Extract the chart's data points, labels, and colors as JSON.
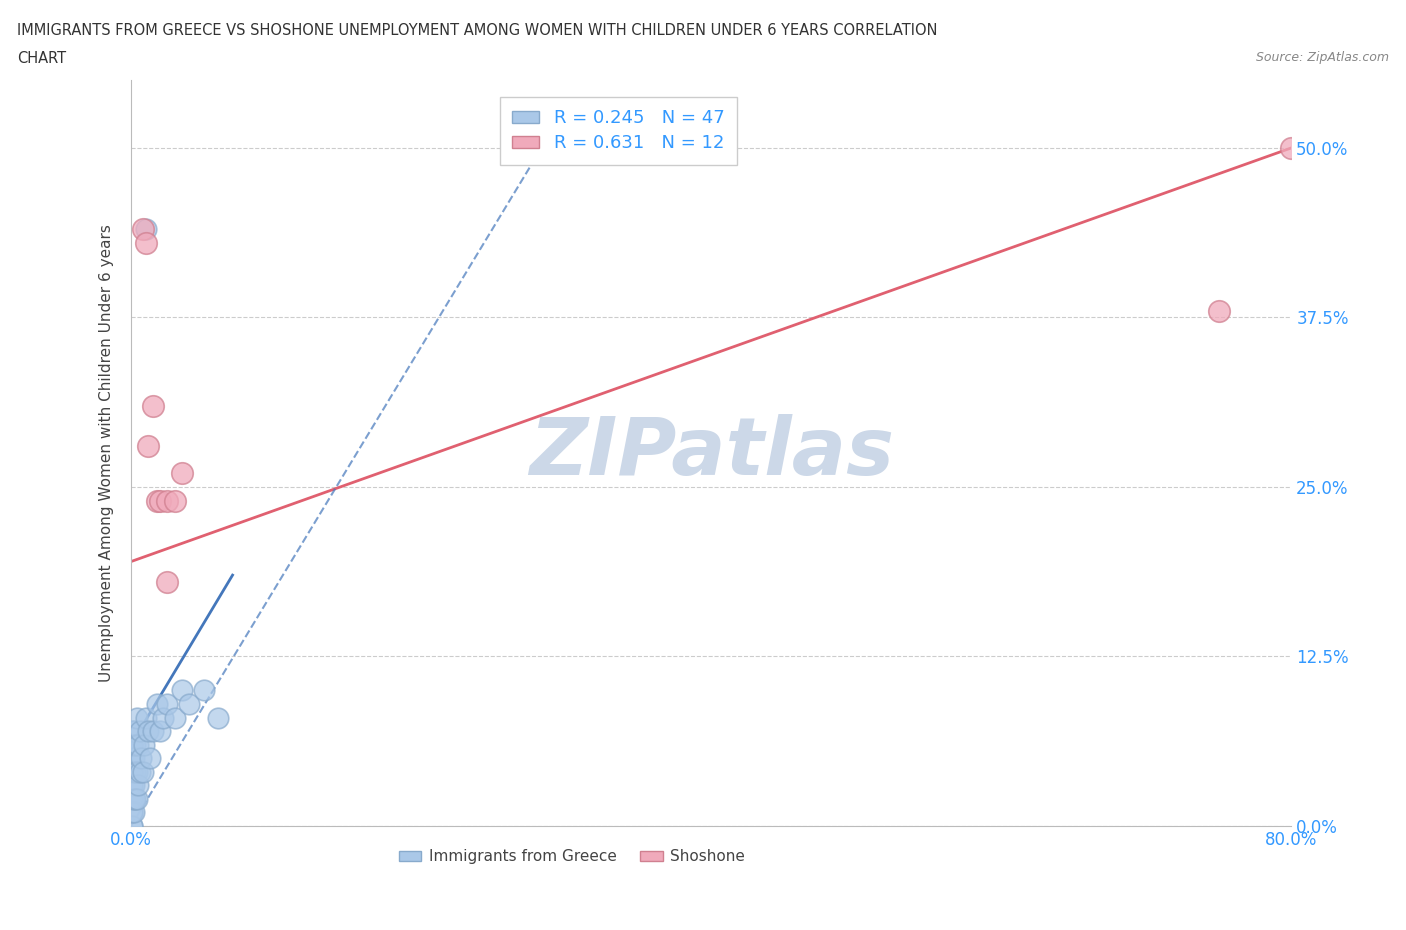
{
  "title_line1": "IMMIGRANTS FROM GREECE VS SHOSHONE UNEMPLOYMENT AMONG WOMEN WITH CHILDREN UNDER 6 YEARS CORRELATION",
  "title_line2": "CHART",
  "source_text": "Source: ZipAtlas.com",
  "ylabel": "Unemployment Among Women with Children Under 6 years",
  "xlim": [
    0.0,
    0.8
  ],
  "ylim": [
    0.0,
    0.55
  ],
  "ytick_labels": [
    "0.0%",
    "12.5%",
    "25.0%",
    "37.5%",
    "50.0%"
  ],
  "ytick_values": [
    0.0,
    0.125,
    0.25,
    0.375,
    0.5
  ],
  "xtick_values": [
    0.0,
    0.1,
    0.2,
    0.3,
    0.4,
    0.5,
    0.6,
    0.7,
    0.8
  ],
  "xtick_labels": [
    "0.0%",
    "",
    "",
    "",
    "",
    "",
    "",
    "",
    "80.0%"
  ],
  "grid_color": "#cccccc",
  "background_color": "#ffffff",
  "watermark_text": "ZIPatlas",
  "watermark_color": "#ccd8e8",
  "greece_color": "#aac8e8",
  "greece_edge_color": "#88aacc",
  "shoshone_color": "#f0aabb",
  "shoshone_edge_color": "#d08090",
  "greece_R": 0.245,
  "greece_N": 47,
  "shoshone_R": 0.631,
  "shoshone_N": 12,
  "legend_bottom_label1": "Immigrants from Greece",
  "legend_bottom_label2": "Shoshone",
  "greece_trendline_color": "#4477bb",
  "shoshone_trendline_color": "#e06070",
  "greece_x": [
    0.0005,
    0.0005,
    0.0005,
    0.0005,
    0.0005,
    0.0005,
    0.0005,
    0.001,
    0.001,
    0.001,
    0.001,
    0.001,
    0.001,
    0.001,
    0.001,
    0.002,
    0.002,
    0.002,
    0.002,
    0.002,
    0.003,
    0.003,
    0.003,
    0.004,
    0.004,
    0.004,
    0.005,
    0.005,
    0.006,
    0.006,
    0.007,
    0.008,
    0.009,
    0.01,
    0.012,
    0.013,
    0.015,
    0.018,
    0.02,
    0.022,
    0.025,
    0.03,
    0.035,
    0.04,
    0.05,
    0.06,
    0.01
  ],
  "greece_y": [
    0.0,
    0.01,
    0.02,
    0.03,
    0.04,
    0.05,
    0.06,
    0.0,
    0.01,
    0.02,
    0.03,
    0.04,
    0.05,
    0.06,
    0.07,
    0.01,
    0.02,
    0.03,
    0.05,
    0.07,
    0.02,
    0.04,
    0.06,
    0.02,
    0.04,
    0.08,
    0.03,
    0.06,
    0.04,
    0.07,
    0.05,
    0.04,
    0.06,
    0.08,
    0.07,
    0.05,
    0.07,
    0.09,
    0.07,
    0.08,
    0.09,
    0.08,
    0.1,
    0.09,
    0.1,
    0.08,
    0.44
  ],
  "shoshone_x": [
    0.008,
    0.01,
    0.012,
    0.015,
    0.018,
    0.02,
    0.025,
    0.025,
    0.03,
    0.035,
    0.75,
    0.8
  ],
  "shoshone_y": [
    0.44,
    0.43,
    0.28,
    0.31,
    0.24,
    0.24,
    0.24,
    0.18,
    0.24,
    0.26,
    0.38,
    0.5
  ],
  "shoshone_trend_x0": 0.0,
  "shoshone_trend_y0": 0.195,
  "shoshone_trend_x1": 0.8,
  "shoshone_trend_y1": 0.5,
  "greece_trend_dashed_x0": 0.0,
  "greece_trend_dashed_y0": 0.0,
  "greece_trend_dashed_x1": 0.3,
  "greece_trend_dashed_y1": 0.53,
  "greece_trend_solid_x0": 0.0,
  "greece_trend_solid_y0": 0.06,
  "greece_trend_solid_x1": 0.07,
  "greece_trend_solid_y1": 0.185
}
